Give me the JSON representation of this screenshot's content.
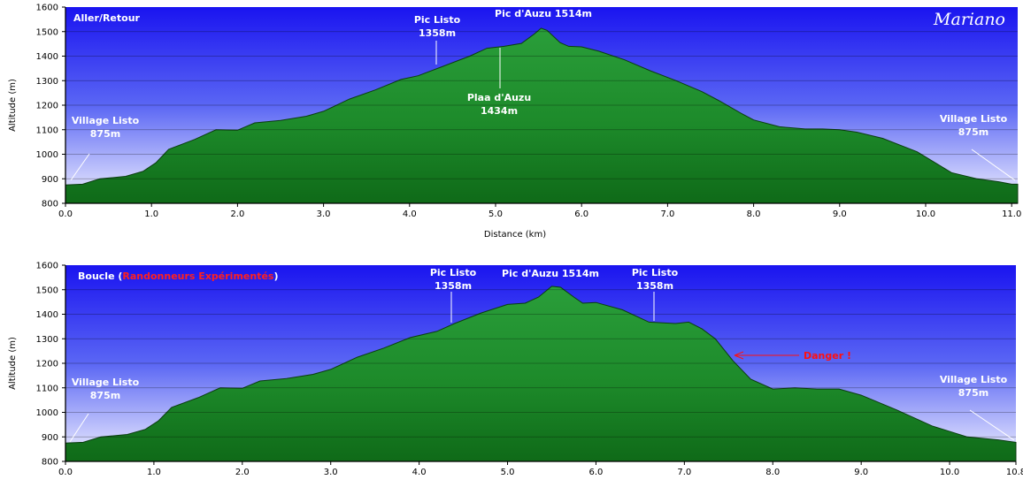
{
  "signature": "Mariano",
  "chart_data": [
    {
      "type": "area",
      "title": "Aller/Retour",
      "xlabel": "Distance   (km)",
      "ylabel": "Altitude (m)",
      "xlim": [
        0,
        11.07
      ],
      "ylim": [
        800,
        1600
      ],
      "xticks": [
        0,
        1,
        2,
        3,
        4,
        5,
        6,
        7,
        8,
        9,
        10,
        11
      ],
      "xtick_labels": [
        "0.0",
        "1.0",
        "2.0",
        "3.0",
        "4.0",
        "5.0",
        "6.0",
        "7.0",
        "8.0",
        "9.0",
        "10.0",
        "11.0"
      ],
      "yticks": [
        800,
        900,
        1000,
        1100,
        1200,
        1300,
        1400,
        1500,
        1600
      ],
      "x": [
        0,
        0.2,
        0.4,
        0.7,
        0.9,
        1.05,
        1.2,
        1.5,
        1.75,
        2.0,
        2.2,
        2.5,
        2.8,
        3.0,
        3.3,
        3.6,
        3.9,
        4.1,
        4.4,
        4.7,
        4.9,
        5.1,
        5.3,
        5.45,
        5.53,
        5.6,
        5.75,
        5.85,
        6.0,
        6.2,
        6.5,
        6.8,
        7.1,
        7.4,
        7.6,
        7.85,
        8.0,
        8.3,
        8.6,
        8.8,
        9.0,
        9.2,
        9.5,
        9.9,
        10.3,
        10.6,
        10.85,
        11.0,
        11.07
      ],
      "y": [
        875,
        878,
        900,
        910,
        930,
        965,
        1020,
        1060,
        1100,
        1098,
        1128,
        1138,
        1155,
        1175,
        1225,
        1262,
        1305,
        1320,
        1360,
        1400,
        1432,
        1440,
        1452,
        1490,
        1514,
        1505,
        1455,
        1440,
        1438,
        1420,
        1385,
        1340,
        1300,
        1255,
        1218,
        1168,
        1140,
        1112,
        1103,
        1103,
        1100,
        1090,
        1065,
        1010,
        925,
        900,
        888,
        878,
        878
      ],
      "annotations": [
        {
          "lines": [
            "Village Listo",
            "875m"
          ],
          "x": 0.05,
          "y": 875
        },
        {
          "lines": [
            "Pic Listo",
            "1358m"
          ],
          "x": 4.33,
          "y": 1358
        },
        {
          "lines": [
            "Pic d'Auzu 1514m"
          ],
          "x": 5.53,
          "y": 1514
        },
        {
          "lines": [
            "Plaa d'Auzu",
            "1434m"
          ],
          "x": 5.02,
          "y": 1434
        },
        {
          "lines": [
            "Village Listo",
            "875m"
          ],
          "x": 11.02,
          "y": 875
        }
      ]
    },
    {
      "type": "area",
      "title_prefix": "Boucle (",
      "title_highlight": "Randonneurs Expérimentés",
      "title_suffix": ")",
      "xlabel": "",
      "ylabel": "Altitude (m)",
      "xlim": [
        0,
        10.75
      ],
      "ylim": [
        800,
        1600
      ],
      "xticks": [
        0,
        1,
        2,
        3,
        4,
        5,
        6,
        7,
        8,
        9,
        10,
        10.75
      ],
      "xtick_labels": [
        "0.0",
        "1.0",
        "2.0",
        "3.0",
        "4.0",
        "5.0",
        "6.0",
        "7.0",
        "8.0",
        "9.0",
        "10.0",
        "10.8"
      ],
      "yticks": [
        800,
        900,
        1000,
        1100,
        1200,
        1300,
        1400,
        1500,
        1600
      ],
      "x": [
        0,
        0.2,
        0.4,
        0.7,
        0.9,
        1.05,
        1.2,
        1.5,
        1.75,
        2.0,
        2.2,
        2.5,
        2.8,
        3.0,
        3.3,
        3.6,
        3.9,
        4.2,
        4.4,
        4.7,
        5.0,
        5.2,
        5.35,
        5.5,
        5.6,
        5.75,
        5.85,
        6.0,
        6.3,
        6.6,
        6.9,
        7.05,
        7.2,
        7.35,
        7.55,
        7.75,
        8.0,
        8.25,
        8.5,
        8.75,
        9.0,
        9.4,
        9.8,
        10.2,
        10.55,
        10.75
      ],
      "y": [
        875,
        878,
        900,
        910,
        930,
        965,
        1020,
        1060,
        1100,
        1098,
        1128,
        1138,
        1155,
        1175,
        1225,
        1262,
        1305,
        1330,
        1362,
        1405,
        1440,
        1445,
        1470,
        1514,
        1510,
        1470,
        1445,
        1448,
        1418,
        1368,
        1362,
        1368,
        1340,
        1300,
        1210,
        1135,
        1095,
        1100,
        1095,
        1095,
        1070,
        1010,
        945,
        900,
        888,
        878
      ],
      "annotations": [
        {
          "lines": [
            "Village Listo",
            "875m"
          ],
          "x": 0.05,
          "y": 875
        },
        {
          "lines": [
            "Pic Listo",
            "1358m"
          ],
          "x": 4.38,
          "y": 1358
        },
        {
          "lines": [
            "Pic d'Auzu 1514m"
          ],
          "x": 5.5,
          "y": 1514
        },
        {
          "lines": [
            "Pic Listo",
            "1358m"
          ],
          "x": 6.65,
          "y": 1358
        },
        {
          "lines": [
            "Village Listo",
            "875m"
          ],
          "x": 10.72,
          "y": 875
        }
      ],
      "danger_label": "Danger !"
    }
  ]
}
